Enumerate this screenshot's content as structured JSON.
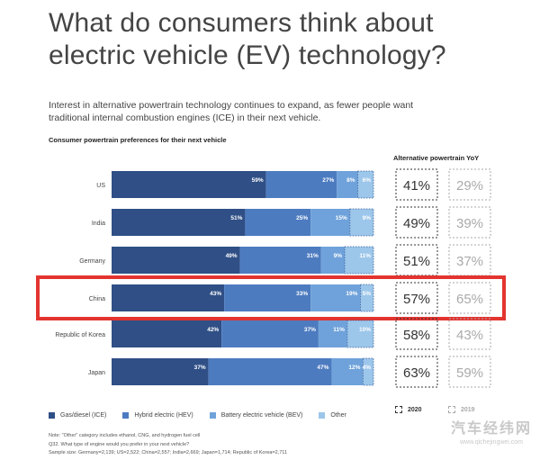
{
  "title": "What do consumers think about electric vehicle (EV) technology?",
  "subtitle": "Interest in alternative powertrain technology continues to expand, as fewer people want traditional internal combustion engines (ICE) in their next vehicle.",
  "section_label": "Consumer powertrain preferences for their next vehicle",
  "yoy_label": "Alternative powertrain YoY",
  "colors": {
    "gas": "#2f4f86",
    "hybrid": "#4d7bc0",
    "bev": "#6fa2da",
    "other": "#9cc6ea",
    "highlight": "#e3342f",
    "yoy_2020": "#333333",
    "yoy_2019": "#aaaaaa"
  },
  "chart_data": {
    "type": "bar",
    "orientation": "horizontal",
    "stacked": true,
    "categories": [
      "US",
      "India",
      "Germany",
      "China",
      "Republic of Korea",
      "Japan"
    ],
    "series": [
      {
        "name": "Gas/diesel (ICE)",
        "values": [
          59,
          51,
          49,
          43,
          42,
          37
        ]
      },
      {
        "name": "Hybrid electric (HEV)",
        "values": [
          27,
          25,
          31,
          33,
          37,
          47
        ]
      },
      {
        "name": "Battery electric vehicle (BEV)",
        "values": [
          8,
          15,
          9,
          19,
          11,
          12
        ]
      },
      {
        "name": "Other",
        "values": [
          6,
          9,
          11,
          5,
          10,
          4
        ]
      }
    ],
    "value_labels": [
      [
        "59%",
        "27%",
        "8%",
        "6%"
      ],
      [
        "51%",
        "25%",
        "15%",
        "9%"
      ],
      [
        "49%",
        "31%",
        "9%",
        "11%"
      ],
      [
        "43%",
        "33%",
        "19%",
        "5%"
      ],
      [
        "42%",
        "37%",
        "11%",
        "10%"
      ],
      [
        "37%",
        "47%",
        "12%",
        "4%"
      ]
    ],
    "highlighted_category": "China",
    "yoy": {
      "2020": [
        41,
        49,
        51,
        57,
        58,
        63
      ],
      "2019": [
        29,
        39,
        37,
        65,
        43,
        59
      ],
      "labels_2020": [
        "41%",
        "49%",
        "51%",
        "57%",
        "58%",
        "63%"
      ],
      "labels_2019": [
        "29%",
        "39%",
        "37%",
        "65%",
        "43%",
        "59%"
      ]
    },
    "xlim": [
      0,
      100
    ],
    "legend_position": "bottom"
  },
  "legend": {
    "gas": "Gas/diesel (ICE)",
    "hybrid": "Hybrid electric (HEV)",
    "bev": "Battery electric vehicle (BEV)",
    "other": "Other",
    "year_2020": "2020",
    "year_2019": "2019"
  },
  "notes": {
    "line1": "Note: \"Other\" category includes ethanol, CNG, and hydrogen fuel cell",
    "line2": "Q32. What type of engine would you prefer in your next vehicle?",
    "line3": "Sample size: Germany=2,139; US=2,522; China=2,557; India=2,669; Japan=1,714; Republic of Korea=2,711"
  },
  "watermark": {
    "main": "汽车经纬网",
    "url": "www.qichejingwei.com"
  }
}
